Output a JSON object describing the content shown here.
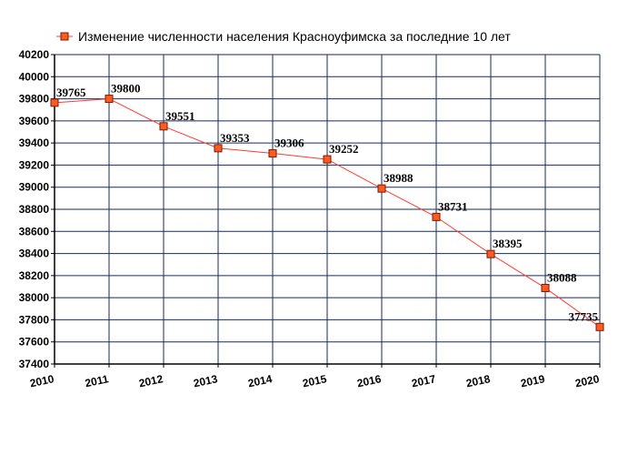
{
  "chart_data": {
    "type": "line",
    "title": "Изменение численности населения Красноуфимска за последние 10 лет",
    "x": [
      "2010",
      "2011",
      "2012",
      "2013",
      "2014",
      "2015",
      "2016",
      "2017",
      "2018",
      "2019",
      "2020"
    ],
    "series": [
      {
        "name": "Изменение численности населения Красноуфимска за последние 10 лет",
        "values": [
          39765,
          39800,
          39551,
          39353,
          39306,
          39252,
          38988,
          38731,
          38395,
          38088,
          37735
        ]
      }
    ],
    "data_labels": [
      "39765",
      "39800",
      "39551",
      "39353",
      "39306",
      "39252",
      "38988",
      "38731",
      "38395",
      "38088",
      "37735"
    ],
    "ylim": [
      37400,
      40200
    ],
    "yticks": [
      "37400",
      "37600",
      "37800",
      "38000",
      "38200",
      "38400",
      "38600",
      "38800",
      "39000",
      "39200",
      "39400",
      "39600",
      "39800",
      "40000",
      "40200"
    ],
    "grid": true,
    "legend_position": "top",
    "colors": {
      "line": "#ff3b30",
      "marker_fill": "#ff5a1f",
      "marker_stroke": "#7a1a00",
      "grid": "#1a2a5a",
      "axis": "#000000"
    }
  }
}
